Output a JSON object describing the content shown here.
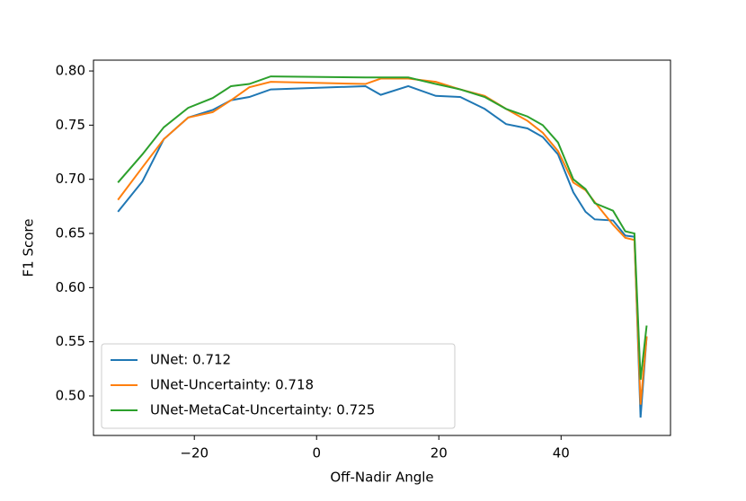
{
  "chart_data": {
    "type": "line",
    "x_label": "Off-Nadir Angle",
    "y_label": "F1 Score",
    "x": [
      -32.5,
      -28.5,
      -25,
      -21,
      -17,
      -14,
      -11,
      -7.5,
      8,
      10.5,
      15,
      19.5,
      23.5,
      27.5,
      31,
      34.5,
      37,
      39.5,
      42,
      44,
      45.5,
      48.5,
      50.5,
      52,
      53,
      54
    ],
    "series": [
      {
        "name": "UNet: 0.712",
        "color": "#1f77b4",
        "values": [
          0.67,
          0.698,
          0.737,
          0.757,
          0.764,
          0.773,
          0.776,
          0.783,
          0.786,
          0.778,
          0.786,
          0.777,
          0.776,
          0.765,
          0.751,
          0.747,
          0.739,
          0.723,
          0.688,
          0.67,
          0.663,
          0.662,
          0.648,
          0.647,
          0.48,
          0.555
        ]
      },
      {
        "name": "UNet-Uncertainty: 0.718",
        "color": "#ff7f0e",
        "values": [
          0.681,
          0.711,
          0.737,
          0.757,
          0.762,
          0.773,
          0.785,
          0.79,
          0.788,
          0.793,
          0.793,
          0.79,
          0.783,
          0.777,
          0.765,
          0.754,
          0.743,
          0.726,
          0.697,
          0.69,
          0.679,
          0.658,
          0.646,
          0.644,
          0.492,
          0.555
        ]
      },
      {
        "name": "UNet-MetaCat-Uncertainty: 0.725",
        "color": "#2ca02c",
        "values": [
          0.697,
          0.723,
          0.748,
          0.766,
          0.775,
          0.786,
          0.788,
          0.795,
          0.794,
          0.794,
          0.794,
          0.788,
          0.783,
          0.776,
          0.765,
          0.758,
          0.75,
          0.734,
          0.7,
          0.691,
          0.678,
          0.671,
          0.652,
          0.65,
          0.515,
          0.565
        ]
      }
    ],
    "xlim": [
      -36.5,
      57.9
    ],
    "ylim": [
      0.4635,
      0.81
    ],
    "xticks": [
      {
        "value": -20,
        "label": "−20"
      },
      0,
      20,
      40
    ],
    "yticks": [
      {
        "value": 0.5,
        "label": "0.50"
      },
      {
        "value": 0.55,
        "label": "0.55"
      },
      {
        "value": 0.6,
        "label": "0.60"
      },
      {
        "value": 0.65,
        "label": "0.65"
      },
      {
        "value": 0.7,
        "label": "0.70"
      },
      {
        "value": 0.75,
        "label": "0.75"
      },
      {
        "value": 0.8,
        "label": "0.80"
      }
    ],
    "legend": "lower left"
  }
}
